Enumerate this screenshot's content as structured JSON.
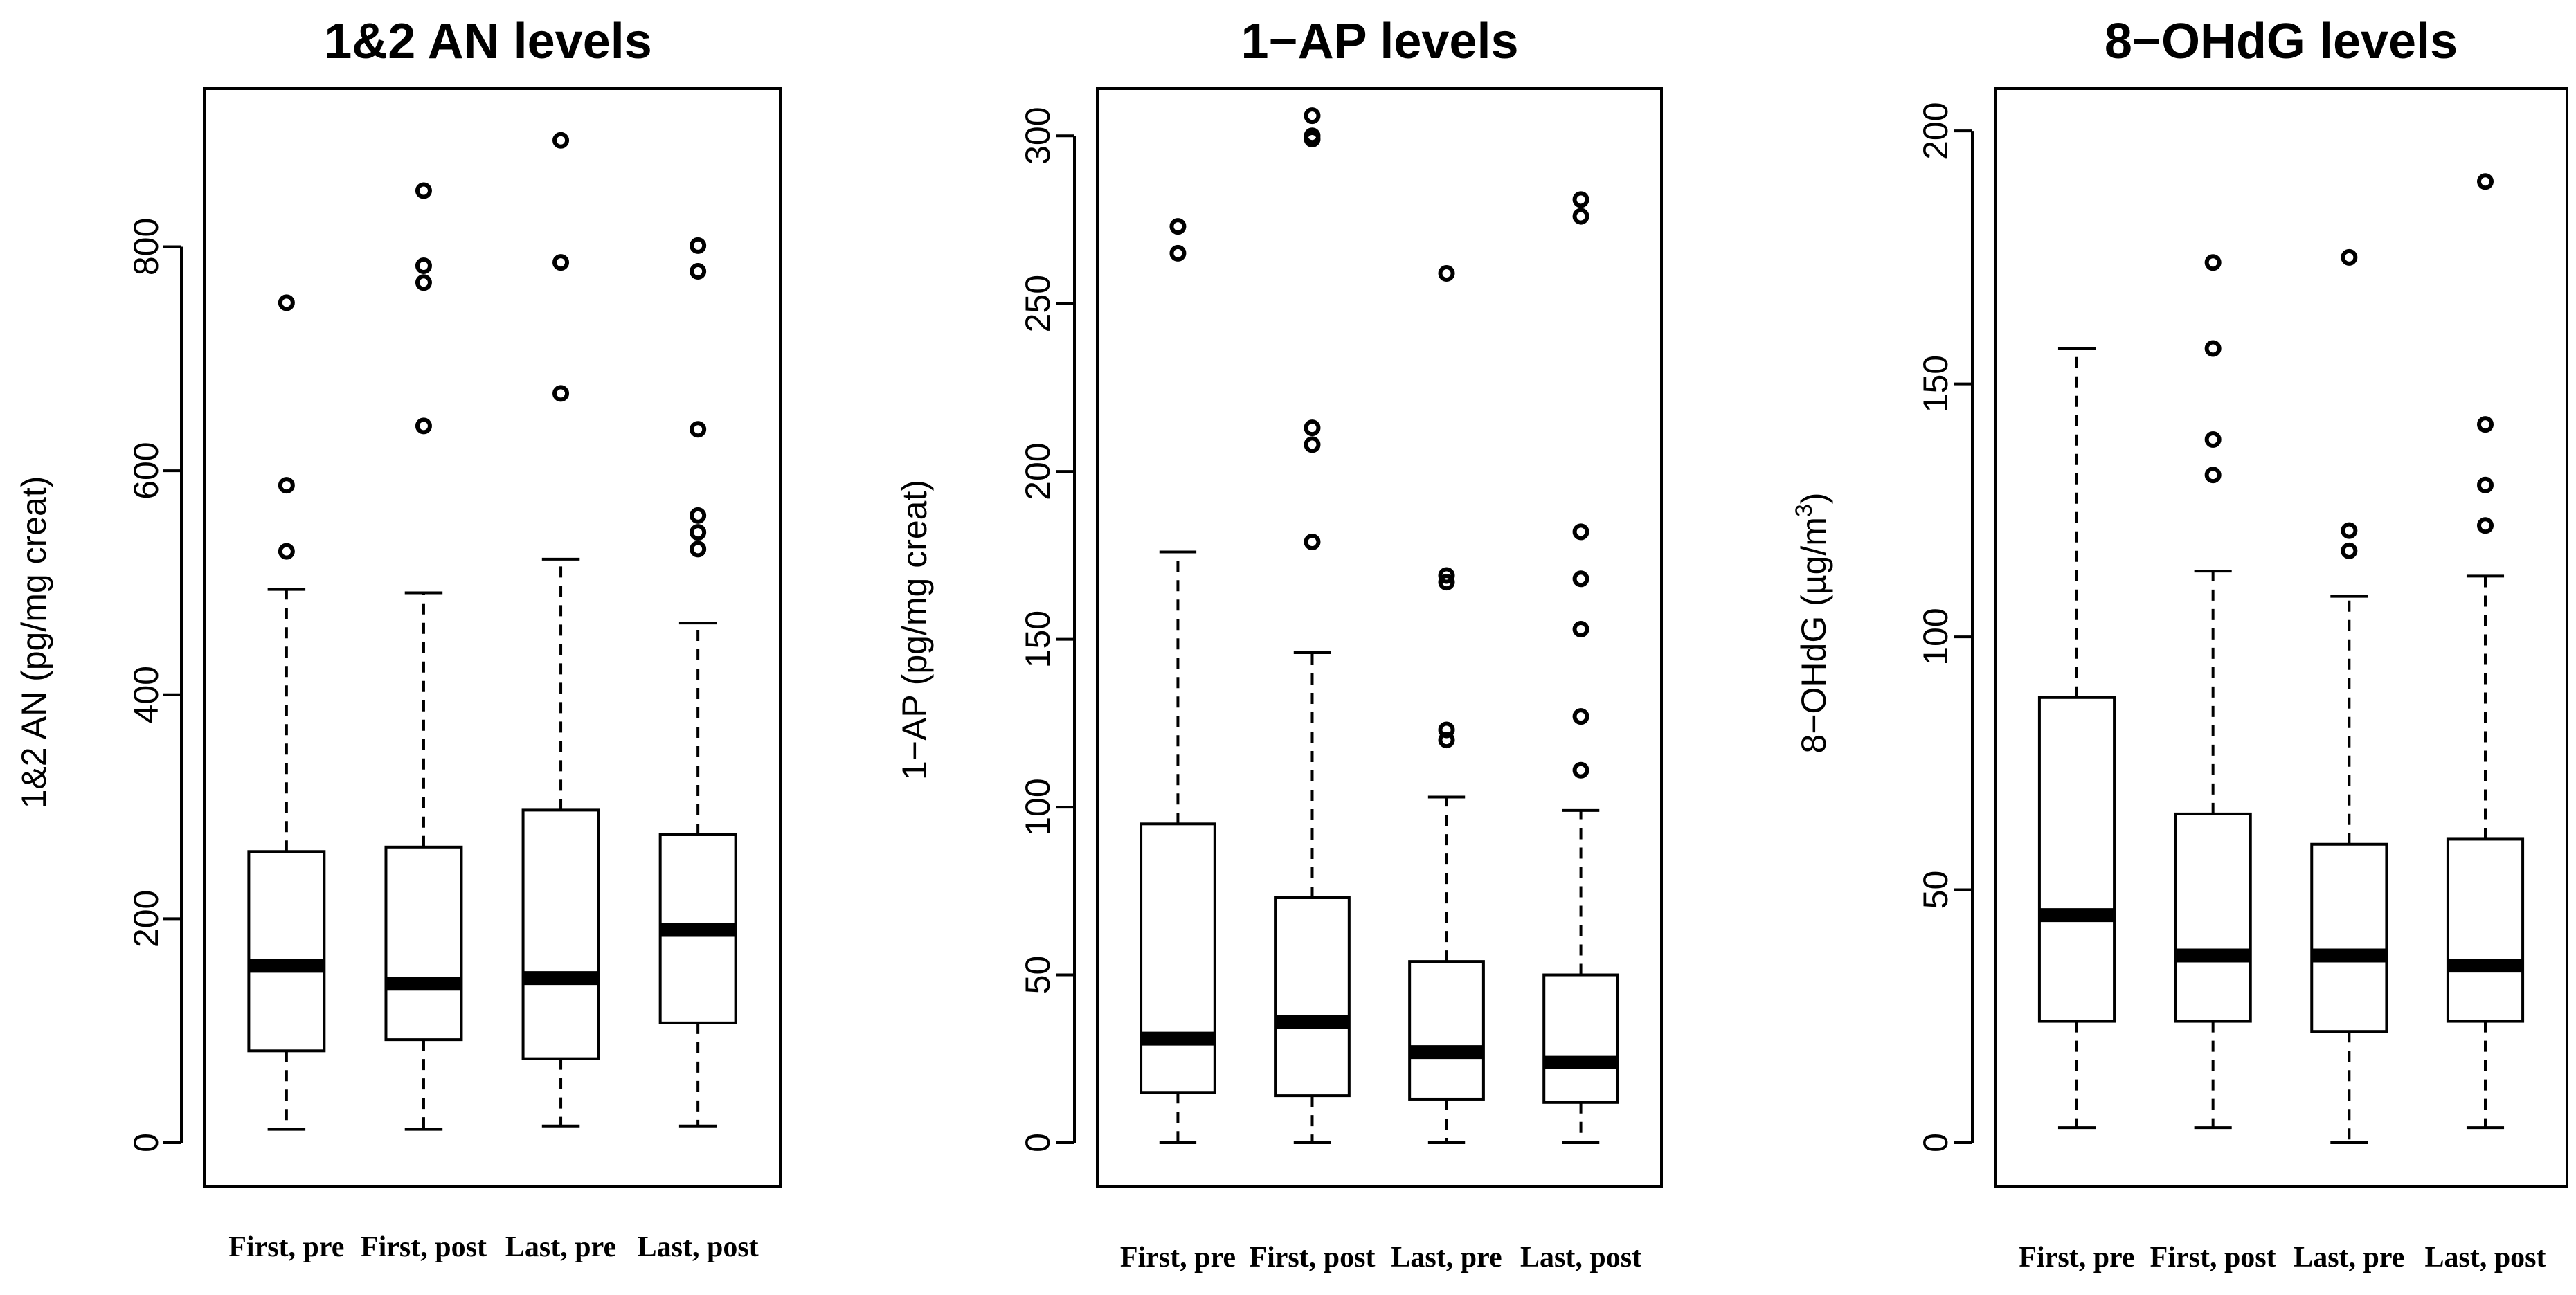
{
  "chart_data": [
    {
      "type": "boxplot",
      "title": "1&2 AN levels",
      "ylabel": "1&2 AN (pg/mg creat)",
      "ylim": [
        0,
        935
      ],
      "yticks": [
        0,
        200,
        400,
        600,
        800
      ],
      "categories": [
        "First, pre",
        "First, post",
        "Last, pre",
        "Last, post"
      ],
      "boxes": [
        {
          "lower_whisker": 12,
          "q1": 82,
          "median": 158,
          "q3": 260,
          "upper_whisker": 494,
          "outliers": [
            528,
            587,
            750
          ]
        },
        {
          "lower_whisker": 12,
          "q1": 92,
          "median": 142,
          "q3": 264,
          "upper_whisker": 491,
          "outliers": [
            640,
            768,
            783,
            850
          ]
        },
        {
          "lower_whisker": 15,
          "q1": 75,
          "median": 147,
          "q3": 297,
          "upper_whisker": 521,
          "outliers": [
            669,
            786,
            895
          ]
        },
        {
          "lower_whisker": 15,
          "q1": 107,
          "median": 190,
          "q3": 275,
          "upper_whisker": 464,
          "outliers": [
            530,
            545,
            560,
            637,
            778,
            801
          ]
        }
      ]
    },
    {
      "type": "boxplot",
      "title": "1−AP levels",
      "ylabel": "1−AP (pg/mg creat)",
      "ylim": [
        0,
        312
      ],
      "yticks": [
        0,
        50,
        100,
        150,
        200,
        250,
        300
      ],
      "categories": [
        "First, pre",
        "First, post",
        "Last, pre",
        "Last, post"
      ],
      "boxes": [
        {
          "lower_whisker": 0,
          "q1": 15,
          "median": 31,
          "q3": 95,
          "upper_whisker": 176,
          "outliers": [
            265,
            273
          ]
        },
        {
          "lower_whisker": 0,
          "q1": 14,
          "median": 36,
          "q3": 73,
          "upper_whisker": 146,
          "outliers": [
            179,
            208,
            213,
            299,
            300,
            306
          ]
        },
        {
          "lower_whisker": 0,
          "q1": 13,
          "median": 27,
          "q3": 54,
          "upper_whisker": 103,
          "outliers": [
            120,
            123,
            167,
            169,
            259
          ]
        },
        {
          "lower_whisker": 0,
          "q1": 12,
          "median": 24,
          "q3": 50,
          "upper_whisker": 99,
          "outliers": [
            111,
            127,
            153,
            168,
            182,
            276,
            281
          ]
        }
      ]
    },
    {
      "type": "boxplot",
      "title": "8−OHdG levels",
      "ylabel_main": "8−OHdG  (µg/m",
      "ylabel_sup": "3",
      "ylabel_end": ")",
      "ylim": [
        0,
        207
      ],
      "yticks": [
        0,
        50,
        100,
        150,
        200
      ],
      "categories": [
        "First, pre",
        "First, post",
        "Last, pre",
        "Last, post"
      ],
      "boxes": [
        {
          "lower_whisker": 3,
          "q1": 24,
          "median": 45,
          "q3": 88,
          "upper_whisker": 157,
          "outliers": []
        },
        {
          "lower_whisker": 3,
          "q1": 24,
          "median": 37,
          "q3": 65,
          "upper_whisker": 113,
          "outliers": [
            132,
            139,
            157,
            174
          ]
        },
        {
          "lower_whisker": 0,
          "q1": 22,
          "median": 37,
          "q3": 59,
          "upper_whisker": 108,
          "outliers": [
            117,
            121,
            175
          ]
        },
        {
          "lower_whisker": 3,
          "q1": 24,
          "median": 35,
          "q3": 60,
          "upper_whisker": 112,
          "outliers": [
            122,
            130,
            142,
            190
          ]
        }
      ]
    }
  ]
}
